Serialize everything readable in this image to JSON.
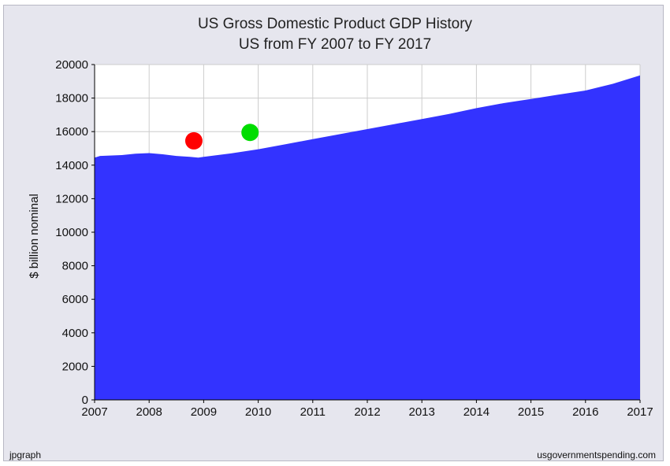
{
  "chart_data": {
    "type": "area",
    "title": "US Gross Domestic Product GDP History",
    "subtitle": "US from FY 2007 to FY 2017",
    "xlabel": "",
    "ylabel": "$ billion nominal",
    "xlim": [
      2007,
      2017
    ],
    "ylim": [
      0,
      20000
    ],
    "grid": true,
    "x_ticks": [
      "2007",
      "2008",
      "2009",
      "2010",
      "2011",
      "2012",
      "2013",
      "2014",
      "2015",
      "2016",
      "2017"
    ],
    "y_ticks": [
      "0",
      "2000",
      "4000",
      "6000",
      "8000",
      "10000",
      "12000",
      "14000",
      "16000",
      "18000",
      "20000"
    ],
    "colors": {
      "area": "#3333ff",
      "plot_bg": "#ffffff",
      "frame_bg": "#e6e6ee",
      "grid": "#cccccc"
    },
    "series": [
      {
        "x": [
          2007,
          2007.1,
          2007.5,
          2007.75,
          2008,
          2008.25,
          2008.5,
          2008.75,
          2008.9,
          2009,
          2009.5,
          2010,
          2010.5,
          2011,
          2011.5,
          2012,
          2012.5,
          2013,
          2013.5,
          2014,
          2014.5,
          2015,
          2015.5,
          2016,
          2016.5,
          2017
        ],
        "values": [
          14450,
          14550,
          14600,
          14680,
          14720,
          14650,
          14550,
          14500,
          14450,
          14500,
          14700,
          14950,
          15250,
          15550,
          15850,
          16150,
          16450,
          16750,
          17050,
          17400,
          17700,
          17950,
          18200,
          18450,
          18850,
          19350
        ]
      }
    ],
    "annotations": [
      {
        "type": "marker",
        "color": "#ff0000",
        "x": 2008.82,
        "y": 15450
      },
      {
        "type": "marker",
        "color": "#00dd00",
        "x": 2009.85,
        "y": 15950
      }
    ],
    "footer_left": "jpgraph",
    "footer_right": "usgovernmentspending.com"
  }
}
